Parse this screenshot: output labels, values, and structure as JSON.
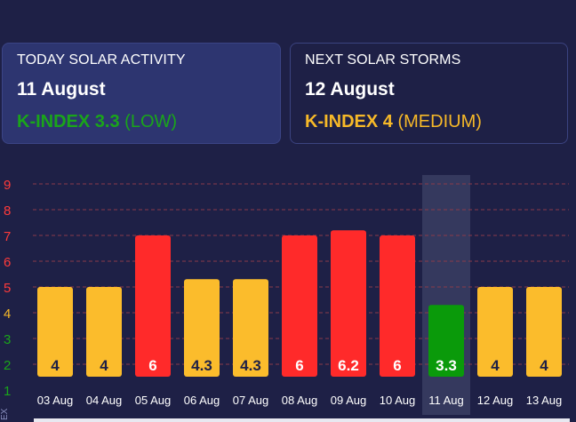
{
  "cards": {
    "today": {
      "label": "TODAY SOLAR ACTIVITY",
      "date": "11 August",
      "kindex_label": "K-INDEX 3.3",
      "level": "(LOW)",
      "color": "#1aa51a"
    },
    "next": {
      "label": "NEXT SOLAR STORMS",
      "date": "12 August",
      "kindex_label": "K-INDEX 4",
      "level": "(MEDIUM)",
      "color": "#f7b928"
    }
  },
  "side_label": "EX",
  "colors": {
    "background": "#1e2046",
    "low": "#0a9a0a",
    "medium": "#fbbc2c",
    "high": "#ff2a2a",
    "highlight": "#3a3e63",
    "gridline": "#8a3a4a"
  },
  "chart_data": {
    "type": "bar",
    "categories": [
      "03 Aug",
      "04 Aug",
      "05 Aug",
      "06 Aug",
      "07 Aug",
      "08 Aug",
      "09 Aug",
      "10 Aug",
      "11 Aug",
      "12 Aug",
      "13 Aug"
    ],
    "values": [
      4,
      4,
      6,
      4.3,
      4.3,
      6,
      6.2,
      6,
      3.3,
      4,
      4
    ],
    "value_labels": [
      "4",
      "4",
      "6",
      "4.3",
      "4.3",
      "6",
      "6.2",
      "6",
      "3.3",
      "4",
      "4"
    ],
    "bar_colors": [
      "#fbbc2c",
      "#fbbc2c",
      "#ff2a2a",
      "#fbbc2c",
      "#fbbc2c",
      "#ff2a2a",
      "#ff2a2a",
      "#ff2a2a",
      "#0a9a0a",
      "#fbbc2c",
      "#fbbc2c"
    ],
    "highlight_index": 8,
    "y_ticks": [
      1,
      2,
      3,
      4,
      5,
      6,
      7,
      8,
      9
    ],
    "y_tick_colors": [
      "#1aa51a",
      "#1aa51a",
      "#1aa51a",
      "#f7b928",
      "#ff3a3a",
      "#ff3a3a",
      "#ff3a3a",
      "#ff3a3a",
      "#ff3a3a"
    ],
    "ylim": [
      1,
      9
    ],
    "grid": true,
    "legend": "none"
  }
}
